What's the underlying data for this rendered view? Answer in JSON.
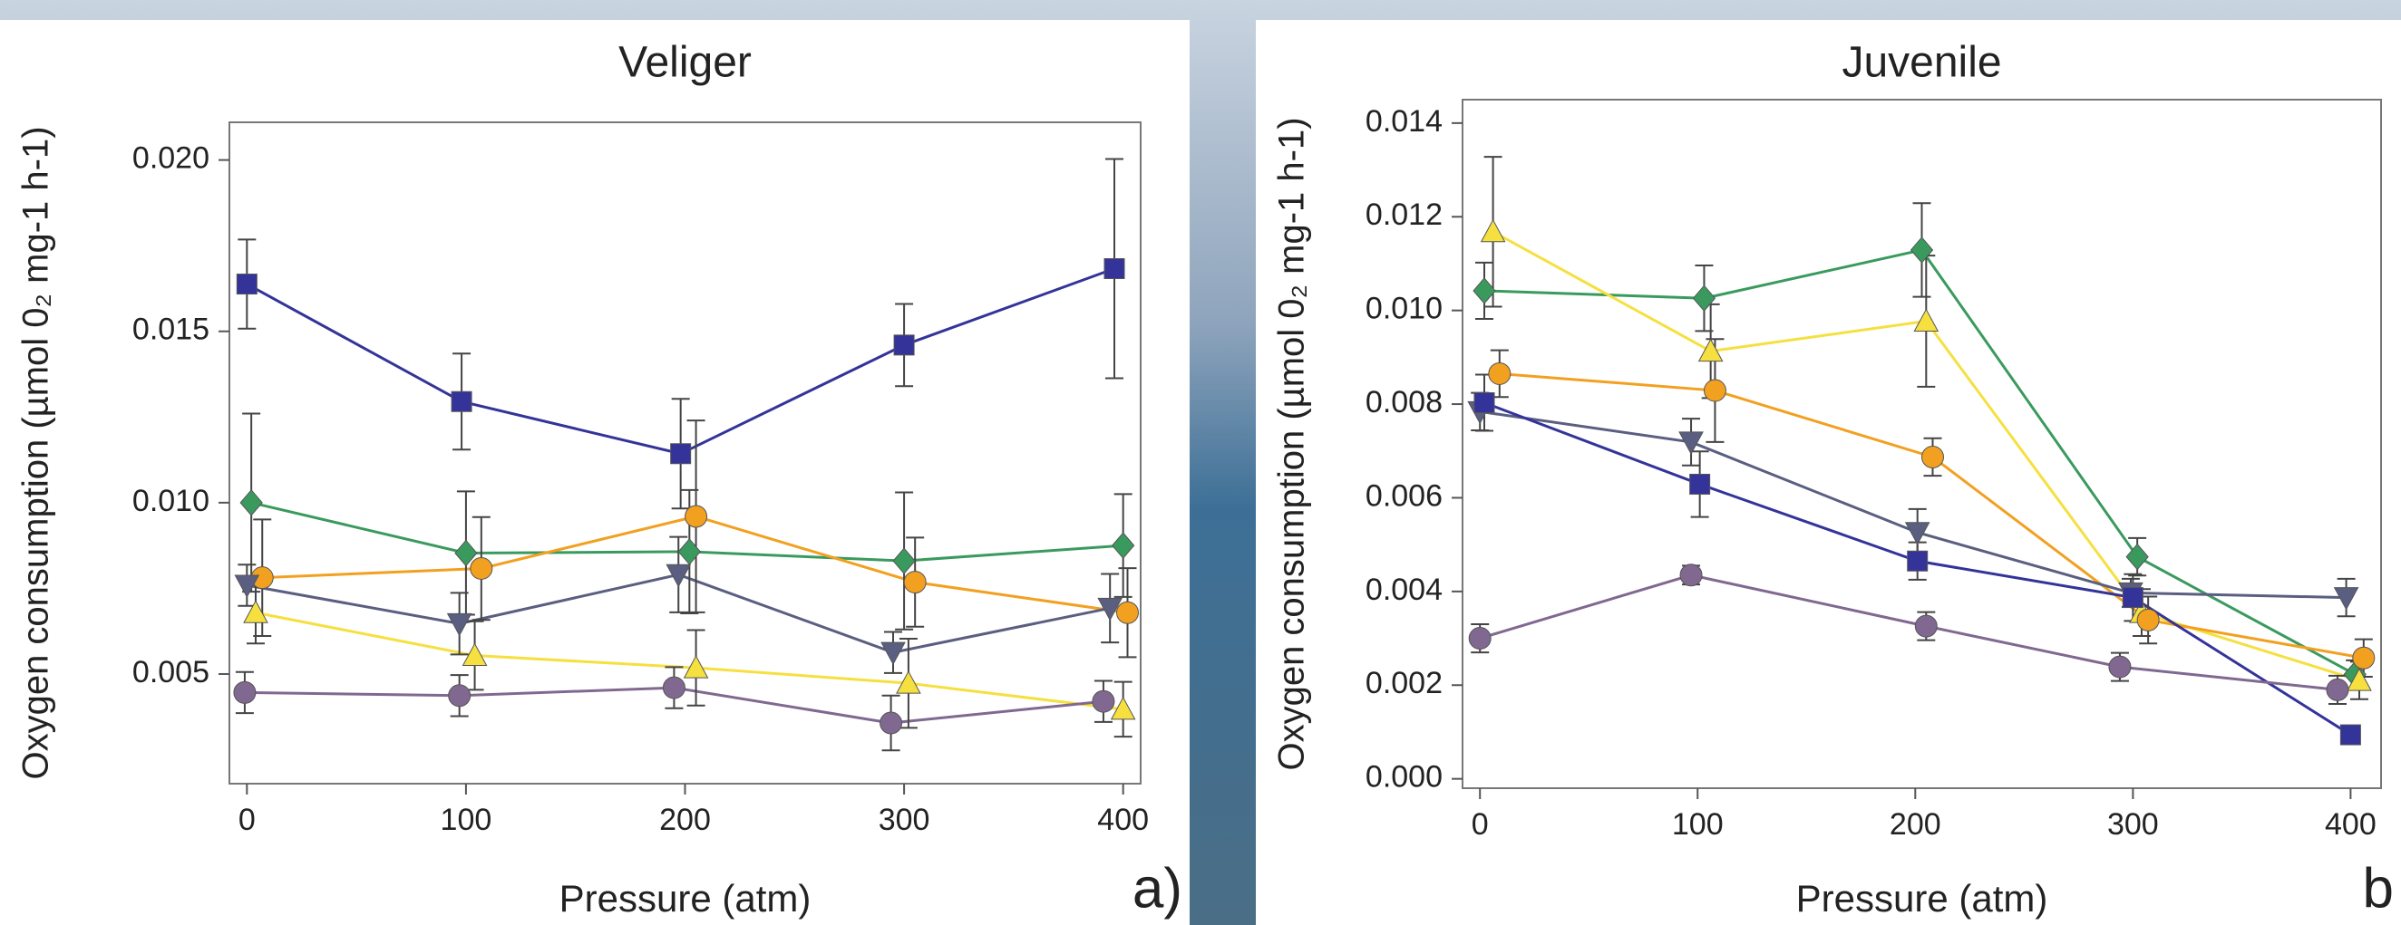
{
  "chart_data": [
    {
      "type": "line",
      "title": "Veliger",
      "xlabel": "Pressure (atm)",
      "ylabel": "Oxygen consumption (µmol 0₂ mg-1 h-1)",
      "panel_label": "a)",
      "xlim": [
        -8,
        408
      ],
      "ylim": [
        0.0018,
        0.0211
      ],
      "xticks": [
        0,
        100,
        200,
        300,
        400
      ],
      "yticks": [
        {
          "value": 0.005,
          "label": "0.005"
        },
        {
          "value": 0.01,
          "label": "0.010"
        },
        {
          "value": 0.015,
          "label": "0.015"
        },
        {
          "value": 0.02,
          "label": "0.020"
        }
      ],
      "series": [
        {
          "color": "#33339a",
          "marker": "square",
          "x": [
            0,
            98,
            198,
            300,
            396
          ],
          "values": [
            0.01638,
            0.01295,
            0.01143,
            0.0146,
            0.01683
          ],
          "errors": [
            0.0013,
            0.0014,
            0.0016,
            0.0012,
            0.0032
          ]
        },
        {
          "color": "#3a9a5e",
          "marker": "diamond",
          "x": [
            2,
            100,
            202,
            300,
            400
          ],
          "values": [
            0.01,
            0.00853,
            0.00857,
            0.0083,
            0.00875
          ],
          "errors": [
            0.0026,
            0.0018,
            0.0018,
            0.002,
            0.0015
          ]
        },
        {
          "color": "#f2a020",
          "marker": "circle",
          "x": [
            7,
            107,
            205,
            305,
            402
          ],
          "values": [
            0.00781,
            0.00808,
            0.0096,
            0.00768,
            0.00679
          ],
          "errors": [
            0.0017,
            0.0015,
            0.0028,
            0.0013,
            0.0013
          ]
        },
        {
          "color": "#5a5e80",
          "marker": "tri-down",
          "x": [
            0,
            97,
            197,
            295,
            394
          ],
          "values": [
            0.00759,
            0.00647,
            0.0079,
            0.00563,
            0.00692
          ],
          "errors": [
            0.0006,
            0.0009,
            0.0011,
            0.0006,
            0.001
          ]
        },
        {
          "color": "#f5e040",
          "marker": "tri-up",
          "x": [
            4,
            104,
            205,
            302,
            400
          ],
          "values": [
            0.00679,
            0.00554,
            0.00518,
            0.00473,
            0.00397
          ],
          "errors": [
            0.0009,
            0.001,
            0.0011,
            0.0013,
            0.0008
          ]
        },
        {
          "color": "#806890",
          "marker": "circle",
          "x": [
            -1,
            97,
            195,
            294,
            391
          ],
          "values": [
            0.00446,
            0.00437,
            0.0046,
            0.00357,
            0.0042
          ],
          "errors": [
            0.0006,
            0.0006,
            0.0006,
            0.0008,
            0.0006
          ]
        }
      ]
    },
    {
      "type": "line",
      "title": "Juvenile",
      "xlabel": "Pressure (atm)",
      "ylabel": "Oxygen consumption (µmol 0₂ mg-1 h-1)",
      "panel_label": "b",
      "xlim": [
        -8,
        414
      ],
      "ylim": [
        -0.0002,
        0.0145
      ],
      "xticks": [
        0,
        100,
        200,
        300,
        400
      ],
      "yticks": [
        {
          "value": 0,
          "label": "0.000"
        },
        {
          "value": 0.002,
          "label": "0.002"
        },
        {
          "value": 0.004,
          "label": "0.004"
        },
        {
          "value": 0.006,
          "label": "0.006"
        },
        {
          "value": 0.008,
          "label": "0.008"
        },
        {
          "value": 0.01,
          "label": "0.010"
        },
        {
          "value": 0.012,
          "label": "0.012"
        },
        {
          "value": 0.014,
          "label": "0.014"
        }
      ],
      "series": [
        {
          "color": "#3a9a5e",
          "marker": "diamond",
          "x": [
            2,
            103,
            203,
            302,
            402
          ],
          "values": [
            0.01042,
            0.01026,
            0.01129,
            0.00474,
            0.00223
          ],
          "errors": [
            0.0006,
            0.0007,
            0.001,
            0.0004,
            0.0003
          ]
        },
        {
          "color": "#f5e040",
          "marker": "tri-up",
          "x": [
            6,
            106,
            205,
            304,
            404
          ],
          "values": [
            0.01168,
            0.00913,
            0.00977,
            0.00355,
            0.0021
          ],
          "errors": [
            0.0016,
            0.001,
            0.0014,
            0.0005,
            0.0004
          ]
        },
        {
          "color": "#f2a020",
          "marker": "circle",
          "x": [
            9,
            108,
            208,
            307,
            406
          ],
          "values": [
            0.00865,
            0.00829,
            0.00687,
            0.00339,
            0.00258
          ],
          "errors": [
            0.0005,
            0.0011,
            0.0004,
            0.0005,
            0.0004
          ]
        },
        {
          "color": "#5a5e80",
          "marker": "tri-down",
          "x": [
            0,
            97,
            201,
            299,
            398
          ],
          "values": [
            0.00784,
            0.00719,
            0.00526,
            0.00397,
            0.00387
          ],
          "errors": [
            0.0004,
            0.0005,
            0.0005,
            0.0003,
            0.0004
          ]
        },
        {
          "color": "#33339a",
          "marker": "square",
          "x": [
            2,
            101,
            201,
            300,
            400
          ],
          "values": [
            0.00803,
            0.00629,
            0.00465,
            0.00387,
            0.00094
          ],
          "errors": [
            0.0006,
            0.0007,
            0.0004,
            0.0005,
            0.0001
          ]
        },
        {
          "color": "#806890",
          "marker": "circle",
          "x": [
            0,
            97,
            205,
            294,
            394
          ],
          "values": [
            0.003,
            0.00435,
            0.00326,
            0.00239,
            0.0019
          ],
          "errors": [
            0.0003,
            0.0002,
            0.0003,
            0.0003,
            0.0003
          ]
        }
      ]
    }
  ]
}
